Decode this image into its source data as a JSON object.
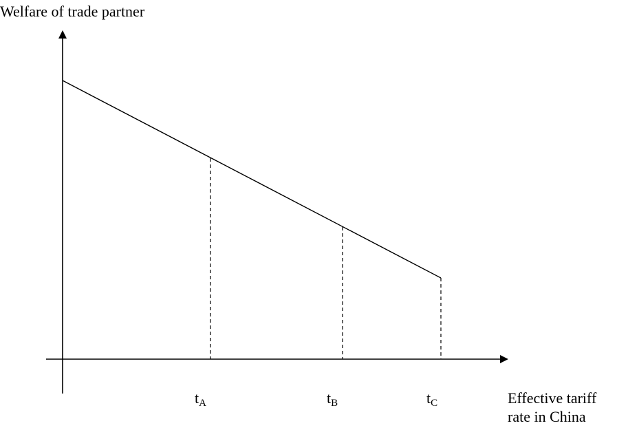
{
  "y_axis_label": "Welfare of trade partner",
  "x_axis_label": [
    "Effective tariff",
    "rate in China"
  ],
  "tick_labels": [
    {
      "main": "t",
      "sub": "A"
    },
    {
      "main": "t",
      "sub": "B"
    },
    {
      "main": "t",
      "sub": "C"
    }
  ]
}
